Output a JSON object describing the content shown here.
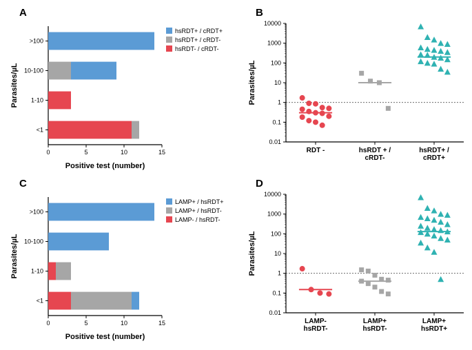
{
  "colors": {
    "blue": "#5b9bd5",
    "red": "#e64650",
    "gray": "#a6a6a6",
    "teal": "#2fb2b2",
    "axis": "#000000",
    "gridline": "#000000",
    "bg": "#ffffff"
  },
  "panelA": {
    "label": "A",
    "type": "stacked-horizontal-bar",
    "y_label": "Parasites/µL",
    "x_label": "Positive test (number)",
    "categories": [
      ">100",
      "10-100",
      "1-10",
      "<1"
    ],
    "xlim": [
      0,
      15
    ],
    "xticks": [
      0,
      5,
      10,
      15
    ],
    "legend": [
      {
        "label": "hsRDT+ / cRDT+",
        "color": "#5b9bd5"
      },
      {
        "label": "hsRDT+ / cRDT-",
        "color": "#a6a6a6"
      },
      {
        "label": "hsRDT- / cRDT-",
        "color": "#e64650"
      }
    ],
    "stacks": [
      {
        "cat": ">100",
        "red": 0,
        "gray": 0,
        "blue": 14
      },
      {
        "cat": "10-100",
        "red": 0,
        "gray": 3,
        "blue": 6
      },
      {
        "cat": "1-10",
        "red": 3,
        "gray": 0,
        "blue": 0
      },
      {
        "cat": "<1",
        "red": 11,
        "gray": 1,
        "blue": 0
      }
    ],
    "bar_width": 0.6
  },
  "panelB": {
    "label": "B",
    "type": "scatter-log",
    "y_label": "Parasites/µL",
    "ylim": [
      0.01,
      10000
    ],
    "yticks": [
      0.01,
      0.1,
      1,
      10,
      100,
      1000,
      10000
    ],
    "ytick_labels": [
      "0.01",
      "0.1",
      "1",
      "10",
      "100",
      "1000",
      "10000"
    ],
    "ref_line": 1,
    "groups": [
      {
        "label": "RDT -",
        "marker": "circle",
        "color": "#e64650",
        "median": 0.3,
        "points": [
          1.7,
          0.9,
          0.85,
          0.55,
          0.5,
          0.45,
          0.35,
          0.3,
          0.28,
          0.2,
          0.18,
          0.12,
          0.1,
          0.07
        ]
      },
      {
        "label": "hsRDT + /\ncRDT-",
        "marker": "square",
        "color": "#a6a6a6",
        "median": 10,
        "points": [
          30,
          12,
          10,
          0.5
        ]
      },
      {
        "label": "hsRDT+ /\ncRDT+",
        "marker": "triangle",
        "color": "#2fb2b2",
        "median": 200,
        "points": [
          7000,
          2000,
          1500,
          1000,
          900,
          600,
          500,
          450,
          400,
          350,
          270,
          250,
          200,
          180,
          150,
          120,
          100,
          90,
          50,
          35
        ]
      }
    ]
  },
  "panelC": {
    "label": "C",
    "type": "stacked-horizontal-bar",
    "y_label": "Parasites/µL",
    "x_label": "Positive test (number)",
    "categories": [
      ">100",
      "10-100",
      "1-10",
      "<1"
    ],
    "xlim": [
      0,
      15
    ],
    "xticks": [
      0,
      5,
      10,
      15
    ],
    "legend": [
      {
        "label": "LAMP+ / hsRDT+",
        "color": "#5b9bd5"
      },
      {
        "label": "LAMP+ / hsRDT-",
        "color": "#a6a6a6"
      },
      {
        "label": "LAMP- / hsRDT-",
        "color": "#e64650"
      }
    ],
    "stacks": [
      {
        "cat": ">100",
        "red": 0,
        "gray": 0,
        "blue": 14
      },
      {
        "cat": "10-100",
        "red": 0,
        "gray": 0,
        "blue": 8
      },
      {
        "cat": "1-10",
        "red": 1,
        "gray": 2,
        "blue": 0
      },
      {
        "cat": "<1",
        "red": 3,
        "gray": 8,
        "blue": 1
      }
    ],
    "bar_width": 0.6
  },
  "panelD": {
    "label": "D",
    "type": "scatter-log",
    "y_label": "Parasites/µL",
    "ylim": [
      0.01,
      10000
    ],
    "yticks": [
      0.01,
      0.1,
      1,
      10,
      100,
      1000,
      10000
    ],
    "ytick_labels": [
      "0.01",
      "0.1",
      "1",
      "10",
      "100",
      "1000",
      "10000"
    ],
    "ref_line": 1,
    "groups": [
      {
        "label": "LAMP-\nhsRDT-",
        "marker": "circle",
        "color": "#e64650",
        "median": 0.15,
        "points": [
          1.7,
          0.15,
          0.1,
          0.09
        ]
      },
      {
        "label": "LAMP+\nhsRDT-",
        "marker": "square",
        "color": "#a6a6a6",
        "median": 0.4,
        "points": [
          1.5,
          1.3,
          0.8,
          0.5,
          0.45,
          0.4,
          0.3,
          0.2,
          0.12,
          0.09
        ]
      },
      {
        "label": "LAMP+\nhsRDT+",
        "marker": "triangle",
        "color": "#2fb2b2",
        "median": 130,
        "points": [
          7000,
          2000,
          1500,
          1000,
          900,
          700,
          600,
          500,
          400,
          300,
          250,
          200,
          170,
          150,
          130,
          120,
          100,
          80,
          60,
          50,
          35,
          20,
          12,
          0.5
        ]
      }
    ]
  }
}
